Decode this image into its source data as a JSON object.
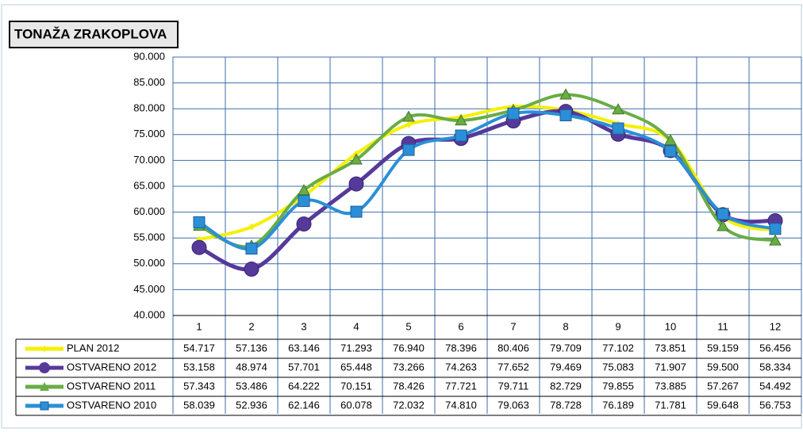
{
  "chart_data": {
    "type": "line",
    "title": "TONAŽA ZRAKOPLOVA",
    "categories": [
      "1",
      "2",
      "3",
      "4",
      "5",
      "6",
      "7",
      "8",
      "9",
      "10",
      "11",
      "12"
    ],
    "ylim": [
      40000,
      90000
    ],
    "yticks": [
      {
        "value": 40000,
        "label": "40.000"
      },
      {
        "value": 45000,
        "label": "45.000"
      },
      {
        "value": 50000,
        "label": "50.000"
      },
      {
        "value": 55000,
        "label": "55.000"
      },
      {
        "value": 60000,
        "label": "60.000"
      },
      {
        "value": 65000,
        "label": "65.000"
      },
      {
        "value": 70000,
        "label": "70.000"
      },
      {
        "value": 75000,
        "label": "75.000"
      },
      {
        "value": 80000,
        "label": "80.000"
      },
      {
        "value": 85000,
        "label": "85.000"
      },
      {
        "value": 90000,
        "label": "90.000"
      }
    ],
    "grid": true,
    "series": [
      {
        "name": "PLAN 2012",
        "color": "#f4f000",
        "marker": "diamond",
        "values": [
          54717,
          57136,
          63146,
          71293,
          76940,
          78396,
          80406,
          79709,
          77102,
          73851,
          59159,
          56456
        ],
        "value_labels": [
          "54.717",
          "57.136",
          "63.146",
          "71.293",
          "76.940",
          "78.396",
          "80.406",
          "79.709",
          "77.102",
          "73.851",
          "59.159",
          "56.456"
        ]
      },
      {
        "name": "OSTVARENO 2012",
        "color": "#553a9a",
        "marker": "circle",
        "values": [
          53158,
          48974,
          57701,
          65448,
          73266,
          74263,
          77652,
          79469,
          75083,
          71907,
          59500,
          58334
        ],
        "value_labels": [
          "53.158",
          "48.974",
          "57.701",
          "65.448",
          "73.266",
          "74.263",
          "77.652",
          "79.469",
          "75.083",
          "71.907",
          "59.500",
          "58.334"
        ]
      },
      {
        "name": "OSTVARENO 2011",
        "color": "#6aac45",
        "marker": "triangle",
        "values": [
          57343,
          53486,
          64222,
          70151,
          78426,
          77721,
          79711,
          82729,
          79855,
          73885,
          57267,
          54492
        ],
        "value_labels": [
          "57.343",
          "53.486",
          "64.222",
          "70.151",
          "78.426",
          "77.721",
          "79.711",
          "82.729",
          "79.855",
          "73.885",
          "57.267",
          "54.492"
        ]
      },
      {
        "name": "OSTVARENO 2010",
        "color": "#2b8fd8",
        "marker": "square",
        "values": [
          58039,
          52936,
          62146,
          60078,
          72032,
          74810,
          79063,
          78728,
          76189,
          71781,
          59648,
          56753
        ],
        "value_labels": [
          "58.039",
          "52.936",
          "62.146",
          "60.078",
          "72.032",
          "74.810",
          "79.063",
          "78.728",
          "76.189",
          "71.781",
          "59.648",
          "56.753"
        ]
      }
    ]
  }
}
